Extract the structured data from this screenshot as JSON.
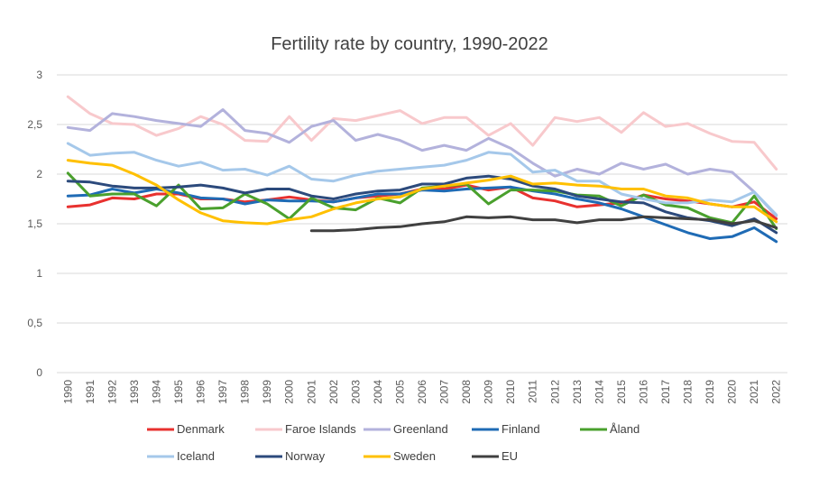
{
  "chart_data": {
    "type": "line",
    "title": "Fertility rate by country, 1990-2022",
    "xlabel": "",
    "ylabel": "",
    "ylim": [
      0,
      3
    ],
    "y_ticks": [
      0,
      0.5,
      1,
      1.5,
      2,
      2.5,
      3
    ],
    "y_tick_labels": [
      "0",
      "0,5",
      "1",
      "1,5",
      "2",
      "2,5",
      "3"
    ],
    "grid": true,
    "legend_position": "bottom",
    "categories": [
      "1990",
      "1991",
      "1992",
      "1993",
      "1994",
      "1995",
      "1996",
      "1997",
      "1998",
      "1999",
      "2000",
      "2001",
      "2002",
      "2003",
      "2004",
      "2005",
      "2006",
      "2007",
      "2008",
      "2009",
      "2010",
      "2011",
      "2012",
      "2013",
      "2014",
      "2015",
      "2016",
      "2017",
      "2018",
      "2019",
      "2020",
      "2021",
      "2022"
    ],
    "series": [
      {
        "name": "Denmark",
        "color": "#e8312f",
        "values": [
          1.67,
          1.69,
          1.76,
          1.75,
          1.8,
          1.8,
          1.75,
          1.75,
          1.72,
          1.74,
          1.77,
          1.74,
          1.72,
          1.76,
          1.78,
          1.8,
          1.85,
          1.85,
          1.89,
          1.84,
          1.87,
          1.76,
          1.73,
          1.67,
          1.69,
          1.71,
          1.79,
          1.75,
          1.73,
          1.7,
          1.67,
          1.72,
          1.55
        ]
      },
      {
        "name": "Faroe Islands",
        "color": "#f8c9cc",
        "values": [
          2.78,
          2.61,
          2.51,
          2.5,
          2.39,
          2.46,
          2.58,
          2.5,
          2.34,
          2.33,
          2.58,
          2.34,
          2.56,
          2.54,
          2.59,
          2.64,
          2.51,
          2.57,
          2.57,
          2.39,
          2.51,
          2.29,
          2.57,
          2.53,
          2.57,
          2.42,
          2.62,
          2.48,
          2.51,
          2.41,
          2.33,
          2.32,
          2.05
        ]
      },
      {
        "name": "Greenland",
        "color": "#b3b2dc",
        "values": [
          2.47,
          2.44,
          2.61,
          2.58,
          2.54,
          2.51,
          2.48,
          2.65,
          2.44,
          2.41,
          2.32,
          2.48,
          2.54,
          2.34,
          2.4,
          2.34,
          2.24,
          2.29,
          2.24,
          2.36,
          2.26,
          2.11,
          1.98,
          2.05,
          2.0,
          2.11,
          2.05,
          2.1,
          2.0,
          2.05,
          2.02,
          1.82,
          1.58
        ]
      },
      {
        "name": "Finland",
        "color": "#1f6bb5",
        "values": [
          1.78,
          1.79,
          1.85,
          1.81,
          1.85,
          1.81,
          1.76,
          1.75,
          1.7,
          1.74,
          1.73,
          1.73,
          1.72,
          1.76,
          1.8,
          1.8,
          1.84,
          1.83,
          1.85,
          1.86,
          1.87,
          1.83,
          1.8,
          1.75,
          1.71,
          1.65,
          1.57,
          1.49,
          1.41,
          1.35,
          1.37,
          1.46,
          1.32
        ]
      },
      {
        "name": "Åland",
        "color": "#4aa02d",
        "values": [
          2.01,
          1.78,
          1.8,
          1.8,
          1.68,
          1.89,
          1.65,
          1.66,
          1.8,
          1.7,
          1.55,
          1.76,
          1.66,
          1.64,
          1.76,
          1.71,
          1.86,
          1.88,
          1.9,
          1.7,
          1.84,
          1.84,
          1.83,
          1.79,
          1.78,
          1.68,
          1.79,
          1.69,
          1.66,
          1.56,
          1.51,
          1.78,
          1.45
        ]
      },
      {
        "name": "Iceland",
        "color": "#a5c8ea",
        "values": [
          2.31,
          2.19,
          2.21,
          2.22,
          2.14,
          2.08,
          2.12,
          2.04,
          2.05,
          1.99,
          2.08,
          1.95,
          1.93,
          1.99,
          2.03,
          2.05,
          2.07,
          2.09,
          2.14,
          2.22,
          2.2,
          2.02,
          2.04,
          1.93,
          1.93,
          1.8,
          1.75,
          1.71,
          1.71,
          1.74,
          1.72,
          1.82,
          1.59
        ]
      },
      {
        "name": "Norway",
        "color": "#2c4a7c",
        "values": [
          1.93,
          1.92,
          1.88,
          1.86,
          1.86,
          1.87,
          1.89,
          1.86,
          1.81,
          1.85,
          1.85,
          1.78,
          1.75,
          1.8,
          1.83,
          1.84,
          1.9,
          1.9,
          1.96,
          1.98,
          1.95,
          1.88,
          1.85,
          1.78,
          1.75,
          1.72,
          1.71,
          1.62,
          1.56,
          1.53,
          1.48,
          1.55,
          1.41
        ]
      },
      {
        "name": "Sweden",
        "color": "#ffc000",
        "values": [
          2.14,
          2.11,
          2.09,
          2.0,
          1.89,
          1.74,
          1.61,
          1.53,
          1.51,
          1.5,
          1.54,
          1.57,
          1.65,
          1.71,
          1.75,
          1.77,
          1.85,
          1.88,
          1.91,
          1.94,
          1.98,
          1.9,
          1.91,
          1.89,
          1.88,
          1.85,
          1.85,
          1.78,
          1.76,
          1.7,
          1.67,
          1.67,
          1.52
        ]
      },
      {
        "name": "EU",
        "color": "#404040",
        "values": [
          null,
          null,
          null,
          null,
          null,
          null,
          null,
          null,
          null,
          null,
          null,
          1.43,
          1.43,
          1.44,
          1.46,
          1.47,
          1.5,
          1.52,
          1.57,
          1.56,
          1.57,
          1.54,
          1.54,
          1.51,
          1.54,
          1.54,
          1.57,
          1.56,
          1.55,
          1.54,
          1.5,
          1.53,
          1.46
        ]
      }
    ]
  }
}
